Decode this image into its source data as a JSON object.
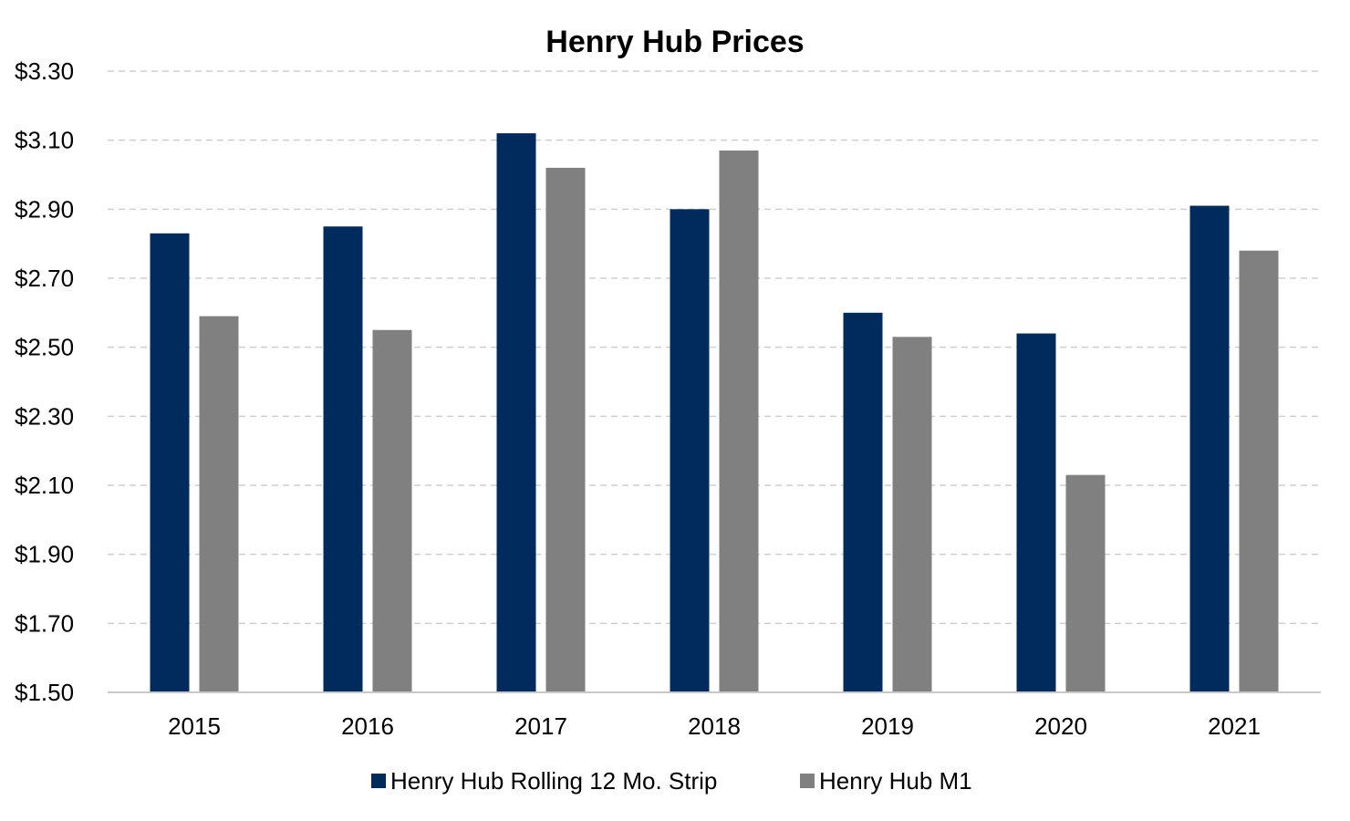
{
  "chart_data": {
    "type": "bar",
    "title": "Henry Hub Prices",
    "xlabel": "",
    "ylabel": "",
    "categories": [
      "2015",
      "2016",
      "2017",
      "2018",
      "2019",
      "2020",
      "2021"
    ],
    "series": [
      {
        "name": "Henry Hub Rolling 12 Mo. Strip",
        "color": "#002b5c",
        "values": [
          2.83,
          2.85,
          3.12,
          2.9,
          2.6,
          2.54,
          2.91
        ]
      },
      {
        "name": "Henry Hub M1",
        "color": "#808080",
        "values": [
          2.59,
          2.55,
          3.02,
          3.07,
          2.53,
          2.13,
          2.78
        ]
      }
    ],
    "ylim": [
      1.5,
      3.3
    ],
    "yticks": [
      1.5,
      1.7,
      1.9,
      2.1,
      2.3,
      2.5,
      2.7,
      2.9,
      3.1,
      3.3
    ],
    "ytick_labels": [
      "$1.50",
      "$1.70",
      "$1.90",
      "$2.10",
      "$2.30",
      "$2.50",
      "$2.70",
      "$2.90",
      "$3.10",
      "$3.30"
    ],
    "grid": true,
    "legend_position": "bottom"
  }
}
